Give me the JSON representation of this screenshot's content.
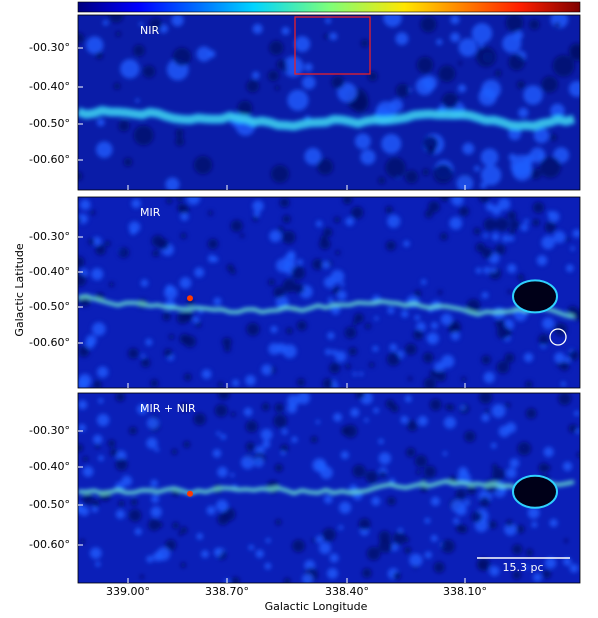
{
  "figure": {
    "panels": [
      {
        "label": "NIR",
        "yticks": [
          "-00.30°",
          "-00.40°",
          "-00.50°",
          "-00.60°"
        ]
      },
      {
        "label": "MIR",
        "yticks": [
          "-00.30°",
          "-00.40°",
          "-00.50°",
          "-00.60°"
        ]
      },
      {
        "label": "MIR + NIR",
        "yticks": [
          "-00.30°",
          "-00.40°",
          "-00.50°",
          "-00.60°"
        ]
      }
    ],
    "xticks": [
      "339.00°",
      "338.70°",
      "338.40°",
      "338.10°"
    ],
    "xlabel": "Galactic Longitude",
    "ylabel": "Galactic Latitude",
    "scalebar": "15.3 pc"
  }
}
